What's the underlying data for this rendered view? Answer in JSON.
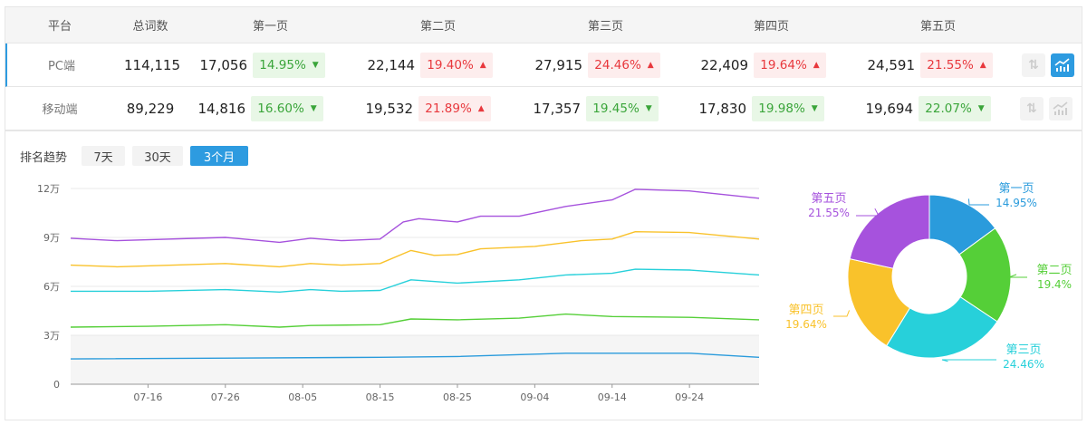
{
  "table": {
    "headers": [
      "平台",
      "总词数",
      "第一页",
      "第二页",
      "第三页",
      "第四页",
      "第五页"
    ],
    "rows": [
      {
        "platform": "PC端",
        "total": "114,115",
        "selected": true,
        "pages": [
          {
            "count": "17,056",
            "pct": "14.95%",
            "dir": "down"
          },
          {
            "count": "22,144",
            "pct": "19.40%",
            "dir": "up"
          },
          {
            "count": "27,915",
            "pct": "24.46%",
            "dir": "up"
          },
          {
            "count": "22,409",
            "pct": "19.64%",
            "dir": "up"
          },
          {
            "count": "24,591",
            "pct": "21.55%",
            "dir": "up"
          }
        ]
      },
      {
        "platform": "移动端",
        "total": "89,229",
        "selected": false,
        "pages": [
          {
            "count": "14,816",
            "pct": "16.60%",
            "dir": "down"
          },
          {
            "count": "19,532",
            "pct": "21.89%",
            "dir": "up"
          },
          {
            "count": "17,357",
            "pct": "19.45%",
            "dir": "down"
          },
          {
            "count": "17,830",
            "pct": "19.98%",
            "dir": "down"
          },
          {
            "count": "19,694",
            "pct": "22.07%",
            "dir": "down"
          }
        ]
      }
    ],
    "icons": {
      "sort": "sort-arrows-icon",
      "trend": "trend-chart-icon",
      "up": "triangle-up-icon",
      "down": "triangle-down-icon"
    }
  },
  "trend": {
    "title": "排名趋势",
    "ranges": [
      "7天",
      "30天",
      "3个月"
    ],
    "active_range": "3个月"
  },
  "chart_data": [
    {
      "type": "line",
      "xlim": [
        "07-06",
        "10-03"
      ],
      "ylim": [
        0,
        120000
      ],
      "yticks": [
        {
          "value": 0,
          "label": "0"
        },
        {
          "value": 30000,
          "label": "3万"
        },
        {
          "value": 60000,
          "label": "6万"
        },
        {
          "value": 90000,
          "label": "9万"
        },
        {
          "value": 120000,
          "label": "12万"
        }
      ],
      "xticks": [
        "07-16",
        "07-26",
        "08-05",
        "08-15",
        "08-25",
        "09-04",
        "09-14",
        "09-24"
      ],
      "shaded_band": [
        0,
        30000
      ],
      "series": [
        {
          "color": "#a652dd",
          "points": [
            [
              "07-06",
              89500
            ],
            [
              "07-12",
              88000
            ],
            [
              "07-26",
              90000
            ],
            [
              "08-02",
              87000
            ],
            [
              "08-06",
              89500
            ],
            [
              "08-10",
              88000
            ],
            [
              "08-15",
              89000
            ],
            [
              "08-18",
              99500
            ],
            [
              "08-20",
              101500
            ],
            [
              "08-25",
              99500
            ],
            [
              "08-28",
              103000
            ],
            [
              "09-02",
              103000
            ],
            [
              "09-08",
              109000
            ],
            [
              "09-14",
              113000
            ],
            [
              "09-17",
              119500
            ],
            [
              "09-24",
              118500
            ],
            [
              "10-03",
              114000
            ]
          ]
        },
        {
          "color": "#f9c22b",
          "points": [
            [
              "07-06",
              73000
            ],
            [
              "07-12",
              72000
            ],
            [
              "07-26",
              74000
            ],
            [
              "08-02",
              72000
            ],
            [
              "08-06",
              74000
            ],
            [
              "08-10",
              73000
            ],
            [
              "08-15",
              74000
            ],
            [
              "08-19",
              82000
            ],
            [
              "08-22",
              79000
            ],
            [
              "08-25",
              79500
            ],
            [
              "08-28",
              83000
            ],
            [
              "09-04",
              84500
            ],
            [
              "09-10",
              88000
            ],
            [
              "09-14",
              89000
            ],
            [
              "09-17",
              93500
            ],
            [
              "09-24",
              93000
            ],
            [
              "10-03",
              89000
            ]
          ]
        },
        {
          "color": "#27d0da",
          "points": [
            [
              "07-06",
              57000
            ],
            [
              "07-16",
              57000
            ],
            [
              "07-26",
              58000
            ],
            [
              "08-02",
              56500
            ],
            [
              "08-06",
              58000
            ],
            [
              "08-10",
              57000
            ],
            [
              "08-15",
              57500
            ],
            [
              "08-19",
              64000
            ],
            [
              "08-25",
              62000
            ],
            [
              "09-02",
              64000
            ],
            [
              "09-08",
              67000
            ],
            [
              "09-14",
              68000
            ],
            [
              "09-17",
              70500
            ],
            [
              "09-24",
              70000
            ],
            [
              "10-03",
              67000
            ]
          ]
        },
        {
          "color": "#55cf38",
          "points": [
            [
              "07-06",
              35000
            ],
            [
              "07-16",
              35500
            ],
            [
              "07-26",
              36500
            ],
            [
              "08-02",
              35000
            ],
            [
              "08-06",
              36000
            ],
            [
              "08-15",
              36500
            ],
            [
              "08-19",
              40000
            ],
            [
              "08-25",
              39500
            ],
            [
              "09-02",
              40500
            ],
            [
              "09-08",
              43000
            ],
            [
              "09-14",
              41500
            ],
            [
              "09-24",
              41000
            ],
            [
              "10-03",
              39500
            ]
          ]
        },
        {
          "color": "#2a9bdc",
          "points": [
            [
              "07-06",
              15500
            ],
            [
              "08-15",
              16500
            ],
            [
              "08-25",
              17000
            ],
            [
              "09-08",
              19000
            ],
            [
              "09-24",
              19000
            ],
            [
              "10-03",
              16500
            ]
          ]
        }
      ]
    },
    {
      "type": "pie",
      "donut": true,
      "slices": [
        {
          "label": "第一页",
          "value": 14.95,
          "display": "14.95%",
          "color": "#2a9bdc"
        },
        {
          "label": "第二页",
          "value": 19.4,
          "display": "19.4%",
          "color": "#55cf38"
        },
        {
          "label": "第三页",
          "value": 24.46,
          "display": "24.46%",
          "color": "#27d0da"
        },
        {
          "label": "第四页",
          "value": 19.64,
          "display": "19.64%",
          "color": "#f9c22b"
        },
        {
          "label": "第五页",
          "value": 21.55,
          "display": "21.55%",
          "color": "#a652dd"
        }
      ]
    }
  ]
}
